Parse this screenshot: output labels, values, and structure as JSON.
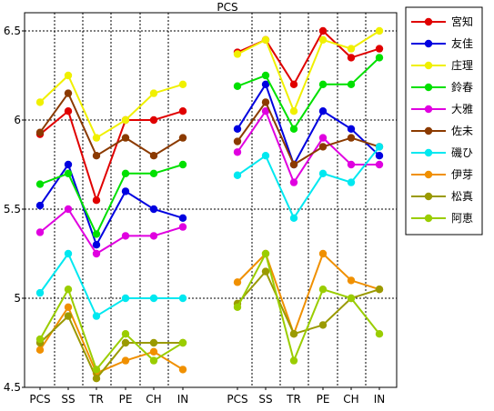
{
  "chart_data": {
    "type": "line",
    "title": "PCS",
    "xlabel": "",
    "ylabel": "",
    "ylim": [
      4.5,
      6.6
    ],
    "y_ticks": [
      "4.5",
      "5",
      "5.5",
      "6",
      "6.5"
    ],
    "grid": true,
    "legend_position": "right",
    "categories": [
      "PCS",
      "SS",
      "TR",
      "PE",
      "CH",
      "IN"
    ],
    "panels": [
      {
        "series": [
          {
            "name": "宮知",
            "color": "#e00000",
            "values": [
              5.92,
              6.05,
              5.55,
              6.0,
              6.0,
              6.05
            ]
          },
          {
            "name": "友佳",
            "color": "#0000e0",
            "values": [
              5.52,
              5.75,
              5.3,
              5.6,
              5.5,
              5.45
            ]
          },
          {
            "name": "庄理",
            "color": "#f0f000",
            "values": [
              6.1,
              6.25,
              5.9,
              6.0,
              6.15,
              6.2
            ]
          },
          {
            "name": "鈴春",
            "color": "#00e000",
            "values": [
              5.64,
              5.7,
              5.36,
              5.7,
              5.7,
              5.75
            ]
          },
          {
            "name": "大雅",
            "color": "#e000e0",
            "values": [
              5.37,
              5.5,
              5.25,
              5.35,
              5.35,
              5.4
            ]
          },
          {
            "name": "佐未",
            "color": "#8b3a00",
            "values": [
              5.93,
              6.15,
              5.8,
              5.9,
              5.8,
              5.9
            ]
          },
          {
            "name": "磯ひ",
            "color": "#00e8f0",
            "values": [
              5.03,
              5.25,
              4.9,
              5.0,
              5.0,
              5.0
            ]
          },
          {
            "name": "伊芽",
            "color": "#f09000",
            "values": [
              4.71,
              4.95,
              4.58,
              4.65,
              4.7,
              4.6
            ]
          },
          {
            "name": "松真",
            "color": "#9a9a00",
            "values": [
              4.75,
              4.9,
              4.55,
              4.75,
              4.75,
              4.75
            ]
          },
          {
            "name": "阿恵",
            "color": "#9acd00",
            "values": [
              4.77,
              5.05,
              4.6,
              4.8,
              4.65,
              4.75
            ]
          }
        ]
      },
      {
        "series": [
          {
            "name": "宮知",
            "color": "#e00000",
            "values": [
              6.38,
              6.45,
              6.2,
              6.5,
              6.35,
              6.4
            ]
          },
          {
            "name": "友佳",
            "color": "#0000e0",
            "values": [
              5.95,
              6.2,
              5.75,
              6.05,
              5.95,
              5.8
            ]
          },
          {
            "name": "庄理",
            "color": "#f0f000",
            "values": [
              6.37,
              6.45,
              6.05,
              6.45,
              6.4,
              6.5
            ]
          },
          {
            "name": "鈴春",
            "color": "#00e000",
            "values": [
              6.19,
              6.25,
              5.95,
              6.2,
              6.2,
              6.35
            ]
          },
          {
            "name": "大雅",
            "color": "#e000e0",
            "values": [
              5.82,
              6.05,
              5.65,
              5.9,
              5.75,
              5.75
            ]
          },
          {
            "name": "佐未",
            "color": "#8b3a00",
            "values": [
              5.88,
              6.1,
              5.75,
              5.85,
              5.9,
              5.85
            ]
          },
          {
            "name": "磯ひ",
            "color": "#00e8f0",
            "values": [
              5.69,
              5.8,
              5.45,
              5.7,
              5.65,
              5.85
            ]
          },
          {
            "name": "伊芽",
            "color": "#f09000",
            "values": [
              5.09,
              5.25,
              4.8,
              5.25,
              5.1,
              5.05
            ]
          },
          {
            "name": "松真",
            "color": "#9a9a00",
            "values": [
              4.97,
              5.15,
              4.8,
              4.85,
              5.0,
              5.05
            ]
          },
          {
            "name": "阿恵",
            "color": "#9acd00",
            "values": [
              4.95,
              5.25,
              4.65,
              5.05,
              5.0,
              4.8
            ]
          }
        ]
      }
    ]
  }
}
